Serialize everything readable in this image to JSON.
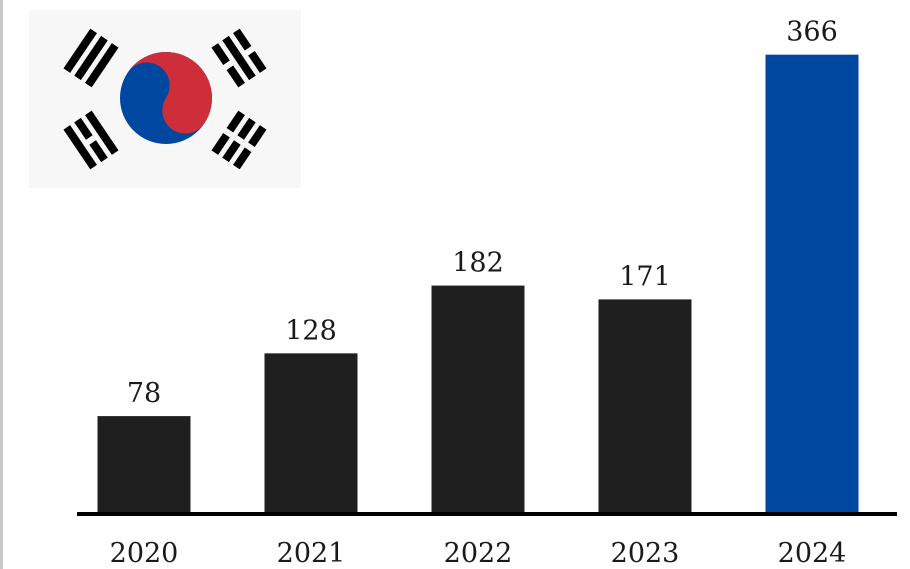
{
  "chart_data": {
    "type": "bar",
    "categories": [
      "2020",
      "2021",
      "2022",
      "2023",
      "2024"
    ],
    "values": [
      78,
      128,
      182,
      171,
      366
    ],
    "title": "",
    "xlabel": "",
    "ylabel": "",
    "ylim": [
      0,
      380
    ],
    "grid": false,
    "legend": "none",
    "colors": {
      "default_bar": "#1f1f1f",
      "highlight_bar": "#0047a0",
      "highlight_index": 4,
      "axis": "#000000"
    }
  },
  "decoration": {
    "flag_icon": "south-korea-flag-icon",
    "flag_colors": {
      "red": "#cd2e3a",
      "blue": "#0047a0",
      "trigram": "#000000",
      "background": "#f7f7f7"
    }
  }
}
